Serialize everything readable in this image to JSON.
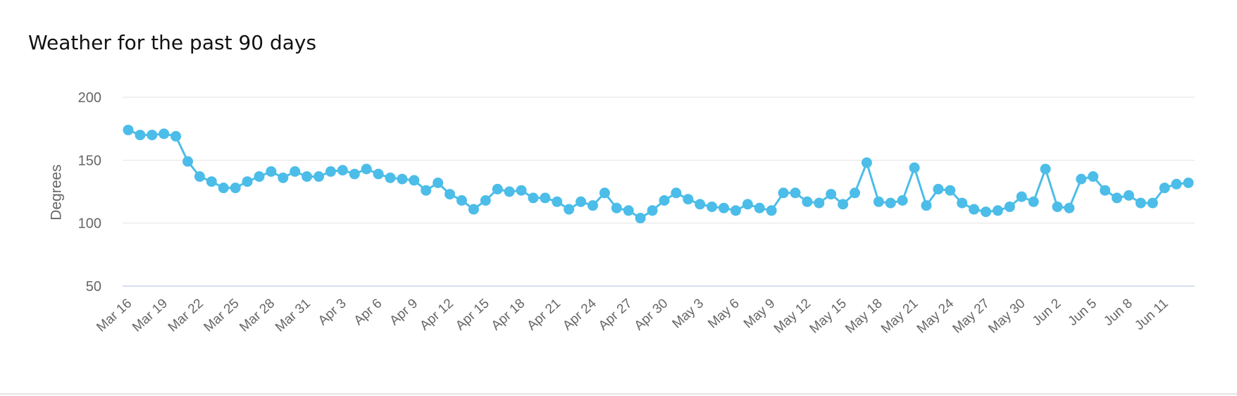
{
  "chart_data": {
    "type": "line",
    "title": "Weather for the past 90 days",
    "xlabel": "",
    "ylabel": "Degrees",
    "ylim": [
      50,
      200
    ],
    "y_ticks": [
      50,
      100,
      150,
      200
    ],
    "grid": true,
    "legend": "none",
    "line_color": "#4cbde8",
    "x_tick_labels": [
      "Mar 16",
      "Mar 19",
      "Mar 22",
      "Mar 25",
      "Mar 28",
      "Mar 31",
      "Apr 3",
      "Apr 6",
      "Apr 9",
      "Apr 12",
      "Apr 15",
      "Apr 18",
      "Apr 21",
      "Apr 24",
      "Apr 27",
      "Apr 30",
      "May 3",
      "May 6",
      "May 9",
      "May 12",
      "May 15",
      "May 18",
      "May 21",
      "May 24",
      "May 27",
      "May 30",
      "Jun 2",
      "Jun 5",
      "Jun 8",
      "Jun 11"
    ],
    "series": [
      {
        "values": [
          174,
          170,
          170,
          171,
          169,
          149,
          137,
          133,
          128,
          128,
          133,
          137,
          141,
          136,
          141,
          137,
          137,
          141,
          142,
          139,
          143,
          139,
          136,
          135,
          134,
          126,
          132,
          123,
          118,
          111,
          118,
          127,
          125,
          126,
          120,
          120,
          117,
          111,
          117,
          114,
          124,
          112,
          110,
          104,
          110,
          118,
          124,
          119,
          115,
          113,
          112,
          110,
          115,
          112,
          110,
          124,
          124,
          117,
          116,
          123,
          115,
          124,
          148,
          117,
          116,
          118,
          144,
          114,
          127,
          126,
          116,
          111,
          109,
          110,
          113,
          121,
          117,
          143,
          113,
          112,
          135,
          137,
          126,
          120,
          122,
          116,
          116,
          128,
          131,
          132
        ]
      }
    ]
  }
}
